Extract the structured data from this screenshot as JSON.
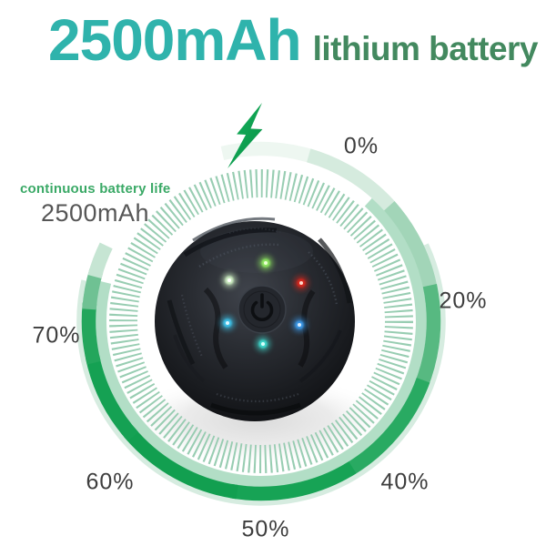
{
  "header": {
    "capacity": "2500mAh",
    "subtitle": "lithium battery"
  },
  "battery_info": {
    "label": "continuous battery life",
    "capacity": "2500mAh"
  },
  "ring": {
    "labels": [
      {
        "text": "0%"
      },
      {
        "text": "20%"
      },
      {
        "text": "40%"
      },
      {
        "text": "50%"
      },
      {
        "text": "60%"
      },
      {
        "text": "70%"
      }
    ]
  },
  "icons": {
    "lightning": "lightning-bolt-icon",
    "power": "power-button-icon"
  },
  "leds": [
    {
      "name": "green-led-top",
      "color": "#8ee860",
      "core": "#eaffd2"
    },
    {
      "name": "white-green-led-left",
      "color": "#cdeec2",
      "core": "#ffffff"
    },
    {
      "name": "red-led-right",
      "color": "#d8281a",
      "core": "#ffd9cc"
    },
    {
      "name": "cyan-led-left",
      "color": "#3cc2ea",
      "core": "#dff6ff"
    },
    {
      "name": "blue-led-right",
      "color": "#3b98e8",
      "core": "#d6ecff"
    },
    {
      "name": "cyan-led-bottom",
      "color": "#3dd8cc",
      "core": "#d9fffb"
    }
  ],
  "colors": {
    "title_teal": "#2fb3ac",
    "subtitle_green": "#43895f",
    "accent_green": "#0fa351",
    "callout_green": "#3aa966",
    "value_gray": "#565656",
    "percent_gray": "#3d3d3d",
    "tick_green": "#8fc9ab",
    "ring_inner_band": "#aedcc3",
    "ring_outer_edge": "#cfe9da",
    "ring_gradient": [
      "#eef7f1",
      "#d5ebde",
      "#a2d5b8",
      "#57b981",
      "#29aa62",
      "#17a355",
      "#129f50",
      "#15a153",
      "#23a65c",
      "#6fc193",
      "#c6e5d3"
    ]
  }
}
